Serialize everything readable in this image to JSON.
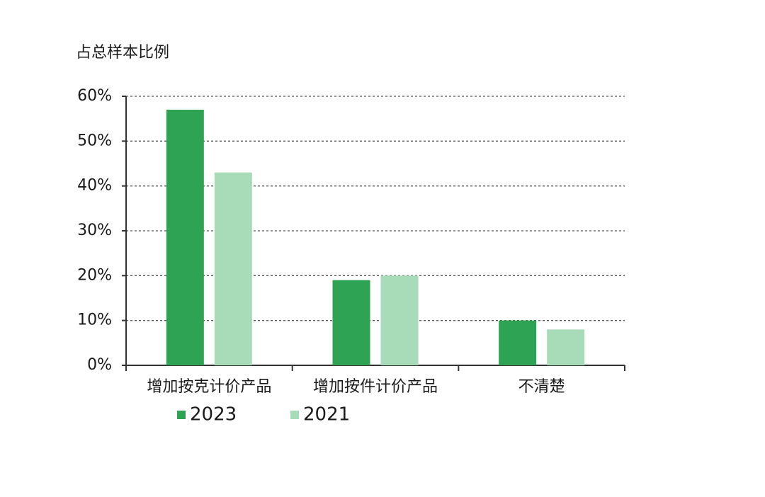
{
  "chart_data": {
    "type": "bar",
    "y_label": "占总样本比例",
    "categories": [
      "增加按克计价产品",
      "增加按件计价产品",
      "不清楚"
    ],
    "series": [
      {
        "name": "2023",
        "color": "#2ea353",
        "values": [
          57,
          19,
          10
        ]
      },
      {
        "name": "2021",
        "color": "#a8dbb7",
        "values": [
          43,
          20,
          8
        ]
      }
    ],
    "ylim": [
      0,
      60
    ],
    "yticks": [
      {
        "value": 0,
        "label": "0%"
      },
      {
        "value": 10,
        "label": "10%"
      },
      {
        "value": 20,
        "label": "20%"
      },
      {
        "value": 30,
        "label": "30%"
      },
      {
        "value": 40,
        "label": "40%"
      },
      {
        "value": 50,
        "label": "50%"
      },
      {
        "value": 60,
        "label": "60%"
      }
    ],
    "grid": true,
    "legend": "bottom"
  }
}
